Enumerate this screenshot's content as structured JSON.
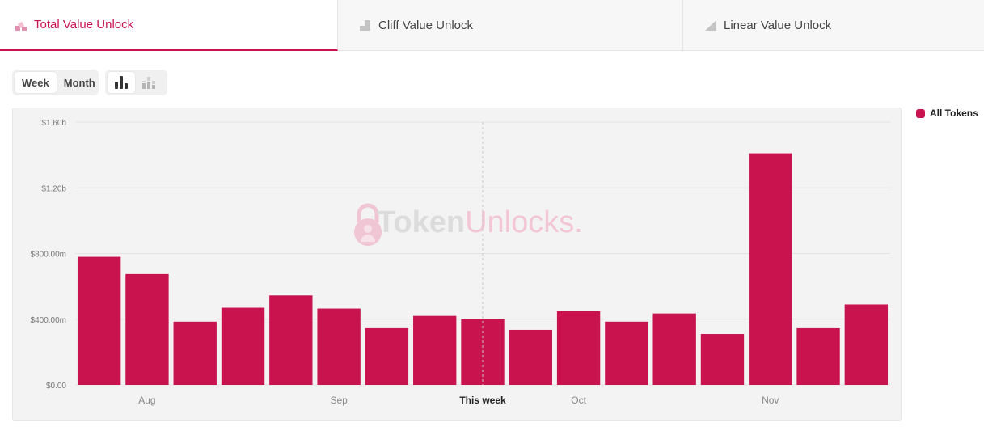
{
  "tabs": [
    {
      "label": "Total Value Unlock",
      "icon": "stacked-bar-icon",
      "active": true
    },
    {
      "label": "Cliff Value Unlock",
      "icon": "cliff-bar-icon",
      "active": false
    },
    {
      "label": "Linear Value Unlock",
      "icon": "linear-ramp-icon",
      "active": false
    }
  ],
  "period_toggle": {
    "week_label": "Week",
    "month_label": "Month",
    "selected": "Week"
  },
  "view_toggle": {
    "options": [
      "bar-chart-icon",
      "stacked-bar-chart-icon"
    ],
    "selected": "bar-chart-icon"
  },
  "watermark": {
    "brand_part1": "Token",
    "brand_part2": "Unlocks."
  },
  "legend": {
    "label": "All Tokens",
    "color": "#c8134f"
  },
  "colors": {
    "accent": "#c8134f",
    "bar": "#c8134f"
  },
  "chart_data": {
    "type": "bar",
    "series": [
      {
        "name": "All Tokens",
        "values": [
          780,
          675,
          385,
          470,
          545,
          465,
          345,
          420,
          400,
          335,
          450,
          385,
          435,
          310,
          1410,
          345,
          490
        ]
      }
    ],
    "x_tick_labels": [
      {
        "label": "Aug",
        "bar_index": 1
      },
      {
        "label": "Sep",
        "bar_index": 5
      },
      {
        "label": "This week",
        "bar_index": 8,
        "bold": true
      },
      {
        "label": "Oct",
        "bar_index": 10
      },
      {
        "label": "Nov",
        "bar_index": 14
      }
    ],
    "y_ticks": [
      {
        "value": 0,
        "label": "$0.00"
      },
      {
        "value": 400,
        "label": "$400.00m"
      },
      {
        "value": 800,
        "label": "$800.00m"
      },
      {
        "value": 1200,
        "label": "$1.20b"
      },
      {
        "value": 1600,
        "label": "$1.60b"
      }
    ],
    "ylim": [
      0,
      1600
    ],
    "y_unit": "millions USD",
    "current_week_marker": "This week",
    "grid": true,
    "legend_position": "top-right"
  }
}
